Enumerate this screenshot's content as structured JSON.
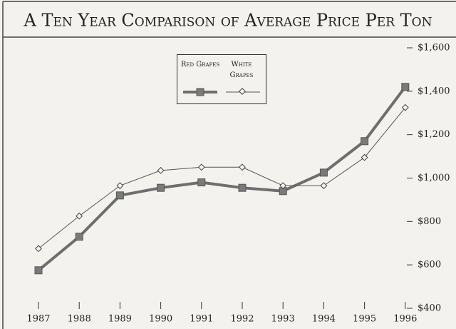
{
  "chart_data": {
    "type": "line",
    "title": "A Ten Year Comparison of Average Price Per Ton",
    "categories": [
      "1987",
      "1988",
      "1989",
      "1990",
      "1991",
      "1992",
      "1993",
      "1994",
      "1995",
      "1996"
    ],
    "series": [
      {
        "name": "Red Grapes",
        "color": "#6e6e6e",
        "values": [
          575,
          730,
          920,
          955,
          980,
          955,
          940,
          1025,
          1170,
          1420
        ]
      },
      {
        "name": "White Grapes",
        "color": "#555555",
        "values": [
          675,
          825,
          965,
          1035,
          1050,
          1050,
          965,
          965,
          1095,
          1325
        ]
      }
    ],
    "ylim": [
      400,
      1600
    ],
    "yticks": [
      {
        "value": 400,
        "label": "$400"
      },
      {
        "value": 600,
        "label": "$600"
      },
      {
        "value": 800,
        "label": "$800"
      },
      {
        "value": 1000,
        "label": "$1,000"
      },
      {
        "value": 1200,
        "label": "$1,200"
      },
      {
        "value": 1400,
        "label": "$1,400"
      },
      {
        "value": 1600,
        "label": "$1,600"
      }
    ]
  }
}
